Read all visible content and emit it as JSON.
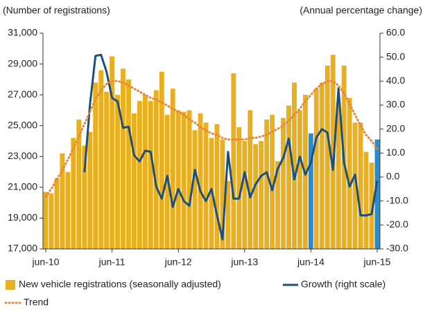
{
  "chart_data": {
    "type": "bar-line",
    "y_label": "(Number of registrations)",
    "y2_label": "(Annual percentage change)",
    "categories": [
      "jun-10",
      null,
      null,
      null,
      null,
      null,
      null,
      null,
      null,
      null,
      null,
      null,
      "jun-11",
      null,
      null,
      null,
      null,
      null,
      null,
      null,
      null,
      null,
      null,
      null,
      "jun-12",
      null,
      null,
      null,
      null,
      null,
      null,
      null,
      null,
      null,
      null,
      null,
      "jun-13",
      null,
      null,
      null,
      null,
      null,
      null,
      null,
      null,
      null,
      null,
      null,
      "jun-14",
      null,
      null,
      null,
      null,
      null,
      null,
      null,
      null,
      null,
      null,
      null,
      "jun-15"
    ],
    "series": [
      {
        "name": "New vehicle registrations (seasonally adjusted)",
        "type": "bar",
        "color": "#e8b020",
        "colors": [
          "#e8b020",
          "#e8b020",
          "#e8b020",
          "#e8b020",
          "#e8b020",
          "#e8b020",
          "#e8b020",
          "#e8b020",
          "#e8b020",
          "#e8b020",
          "#e8b020",
          "#e8b020",
          "#e8b020",
          "#e8b020",
          "#e8b020",
          "#e8b020",
          "#e8b020",
          "#e8b020",
          "#e8b020",
          "#e8b020",
          "#e8b020",
          "#e8b020",
          "#e8b020",
          "#e8b020",
          "#e8b020",
          "#e8b020",
          "#e8b020",
          "#e8b020",
          "#e8b020",
          "#e8b020",
          "#e8b020",
          "#e8b020",
          "#e8b020",
          "#e8b020",
          "#e8b020",
          "#e8b020",
          "#e8b020",
          "#e8b020",
          "#e8b020",
          "#e8b020",
          "#e8b020",
          "#e8b020",
          "#e8b020",
          "#e8b020",
          "#e8b020",
          "#e8b020",
          "#e8b020",
          "#e8b020",
          "#2a8ccb",
          "#e8b020",
          "#e8b020",
          "#e8b020",
          "#e8b020",
          "#e8b020",
          "#e8b020",
          "#e8b020",
          "#e8b020",
          "#e8b020",
          "#e8b020",
          "#e8b020",
          "#2a8ccb"
        ],
        "values": [
          20700,
          20600,
          21600,
          23200,
          22000,
          24200,
          25400,
          23700,
          24600,
          27800,
          28600,
          27200,
          29500,
          27000,
          28700,
          28000,
          25800,
          26600,
          27000,
          26600,
          27300,
          28500,
          25700,
          27400,
          26000,
          25900,
          26000,
          24700,
          25800,
          25200,
          24200,
          25100,
          24100,
          21400,
          28400,
          24900,
          24000,
          26000,
          23800,
          24000,
          25400,
          25700,
          22700,
          25500,
          26300,
          27800,
          26000,
          27000,
          24500,
          27400,
          27800,
          28900,
          29600,
          26500,
          28900,
          26800,
          25200,
          25200,
          23300,
          22600,
          24100
        ]
      },
      {
        "name": "Growth (right scale)",
        "type": "line",
        "axis": "y2",
        "color": "#1d4f7c",
        "values": [
          null,
          null,
          null,
          null,
          null,
          null,
          null,
          2,
          30,
          50.5,
          51,
          44,
          33,
          31.5,
          20.5,
          21,
          9,
          6.5,
          11,
          10.5,
          -4,
          -9,
          0.5,
          -12.5,
          -5,
          -10,
          -12,
          3,
          -6,
          -10,
          -5,
          -16,
          -26,
          10.5,
          -9,
          -9,
          2,
          -8.5,
          -3,
          0.5,
          2,
          -5.5,
          3.5,
          8,
          16,
          -1,
          8.5,
          1,
          6,
          16.5,
          20,
          18.5,
          3,
          37,
          6,
          -4,
          1,
          -16,
          -16,
          -15.5,
          -1.5
        ]
      },
      {
        "name": "Trend",
        "type": "line",
        "style": "dotted",
        "color": "#e8843a",
        "values": [
          20400,
          20900,
          21500,
          22100,
          22800,
          23500,
          24300,
          25100,
          25900,
          26700,
          27300,
          27700,
          27900,
          27900,
          27800,
          27600,
          27400,
          27200,
          27000,
          26800,
          26700,
          26500,
          26300,
          26100,
          25900,
          25700,
          25400,
          25200,
          24900,
          24700,
          24500,
          24400,
          24200,
          24100,
          24100,
          24100,
          24100,
          24200,
          24200,
          24300,
          24400,
          24600,
          24800,
          25000,
          25300,
          25700,
          26100,
          26600,
          27000,
          27400,
          27700,
          27900,
          27900,
          27600,
          27100,
          26400,
          25700,
          25000,
          24400,
          24000,
          23500
        ]
      }
    ],
    "ylim": [
      17000,
      31000
    ],
    "yticks": [
      {
        "value": 17000,
        "label": "17,000"
      },
      {
        "value": 19000,
        "label": "19,000"
      },
      {
        "value": 21000,
        "label": "21,000"
      },
      {
        "value": 23000,
        "label": "23,000"
      },
      {
        "value": 25000,
        "label": "25,000"
      },
      {
        "value": 27000,
        "label": "27,000"
      },
      {
        "value": 29000,
        "label": "29,000"
      },
      {
        "value": 31000,
        "label": "31,000"
      }
    ],
    "y2lim": [
      -30,
      60
    ],
    "y2ticks": [
      {
        "value": -30,
        "label": "-30.0"
      },
      {
        "value": -20,
        "label": "-20.0"
      },
      {
        "value": -10,
        "label": "-10.0"
      },
      {
        "value": 0,
        "label": "0.0"
      },
      {
        "value": 10,
        "label": "10.0"
      },
      {
        "value": 20,
        "label": "20.0"
      },
      {
        "value": 30,
        "label": "30.0"
      },
      {
        "value": 40,
        "label": "40.0"
      },
      {
        "value": 50,
        "label": "50.0"
      },
      {
        "value": 60,
        "label": "60.0"
      }
    ],
    "legend": "bottom"
  }
}
